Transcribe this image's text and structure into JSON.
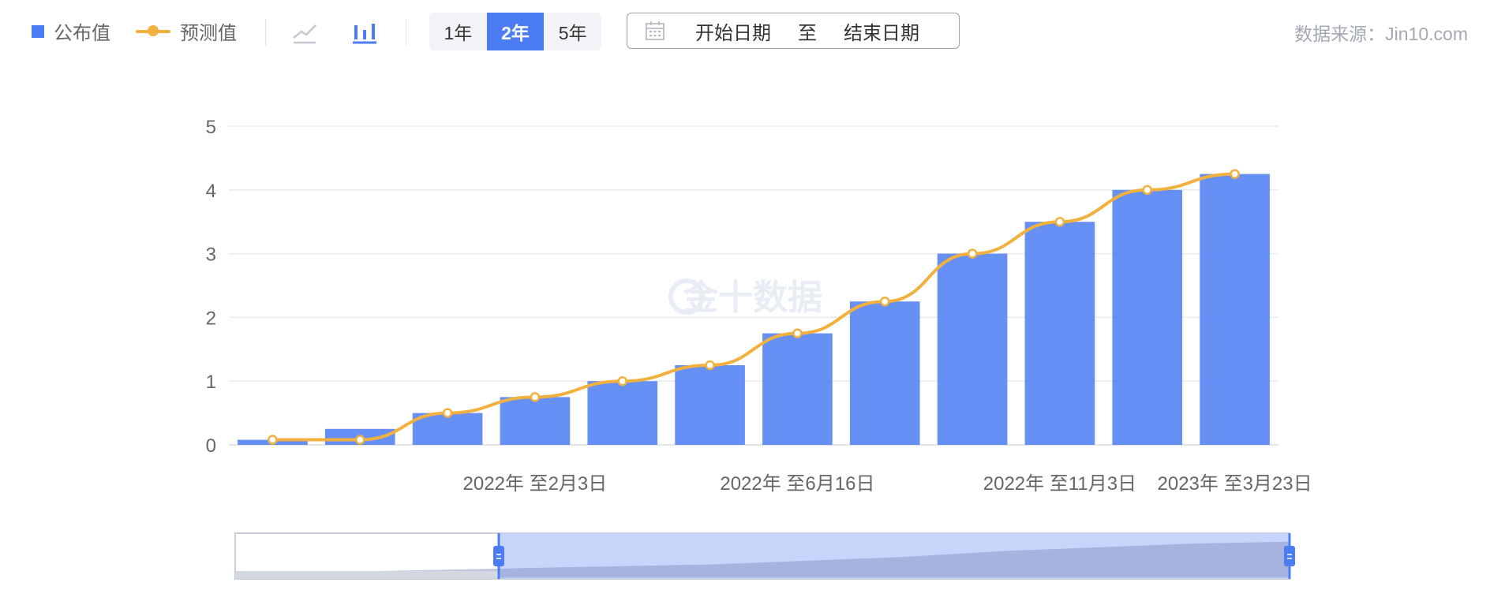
{
  "legend": {
    "bar_label": "公布值",
    "line_label": "预测值"
  },
  "chart_type_buttons": [
    {
      "name": "line-chart-icon",
      "active": false
    },
    {
      "name": "bar-chart-icon",
      "active": true
    }
  ],
  "range_buttons": [
    {
      "label": "1年",
      "active": false
    },
    {
      "label": "2年",
      "active": true
    },
    {
      "label": "5年",
      "active": false
    }
  ],
  "date_range": {
    "start": "开始日期",
    "to": "至",
    "end": "结束日期"
  },
  "source": "数据来源：Jin10.com",
  "watermark": "金十数据",
  "colors": {
    "bar": "#4c7cf3",
    "line": "#f2b13e",
    "axis_text": "#666666",
    "grid": "#e9ebef",
    "slider_fill": "#c5d3fa",
    "slider_handle": "#4c7cf3"
  },
  "zoom": {
    "start_fraction": 0.25,
    "end_fraction": 1.0
  },
  "chart_data": {
    "type": "bar",
    "categories": [
      "c1",
      "c2",
      "c3",
      "c4",
      "c5",
      "c6",
      "c7",
      "c8",
      "c9",
      "c10",
      "c11",
      "c12"
    ],
    "x_tick_labels": [
      "",
      "",
      "",
      "2022年 至2月3日",
      "",
      "",
      "2022年 至6月16日",
      "",
      "",
      "2022年 至11月3日",
      "",
      "2023年 至3月23日"
    ],
    "series": [
      {
        "name": "公布值",
        "type": "bar",
        "values": [
          0.08,
          0.25,
          0.5,
          0.75,
          1.0,
          1.25,
          1.75,
          2.25,
          3.0,
          3.5,
          4.0,
          4.25
        ]
      },
      {
        "name": "预测值",
        "type": "line",
        "values": [
          0.08,
          0.08,
          0.5,
          0.75,
          1.0,
          1.25,
          1.75,
          2.25,
          3.0,
          3.5,
          4.0,
          4.25
        ]
      }
    ],
    "yticks": [
      0,
      1,
      2,
      3,
      4,
      5
    ],
    "ylim": [
      0,
      5
    ],
    "grid": true,
    "legend_position": "top-left"
  }
}
